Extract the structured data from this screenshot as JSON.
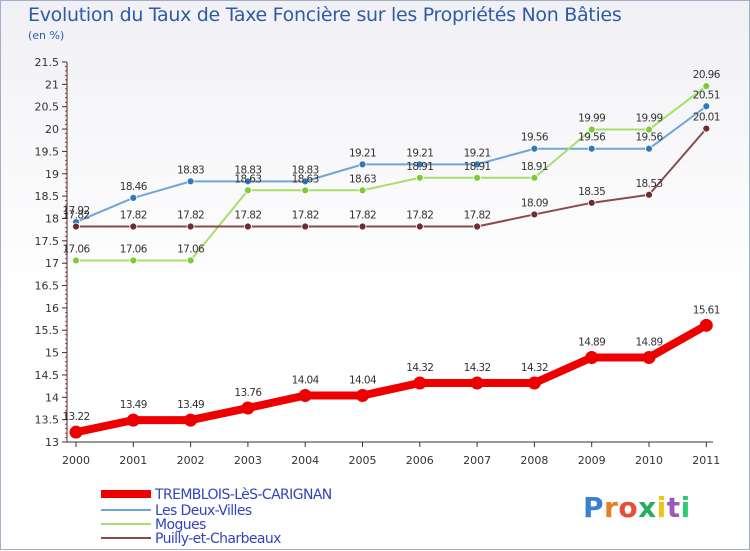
{
  "title": "Evolution du Taux de Taxe Foncière sur les Propriétés Non Bâties",
  "subtitle": "(en %)",
  "brand": "Proxiti",
  "chart_data": {
    "type": "line",
    "title": "Evolution du Taux de Taxe Foncière sur les Propriétés Non Bâties",
    "ylabel": "(en %)",
    "xlabel": "",
    "x": [
      "2000",
      "2001",
      "2002",
      "2003",
      "2004",
      "2005",
      "2006",
      "2007",
      "2008",
      "2009",
      "2010",
      "2011"
    ],
    "ylim": [
      13,
      21.5
    ],
    "yticks": [
      "13",
      "13.5",
      "14",
      "14.5",
      "15",
      "15.5",
      "16",
      "16.5",
      "17",
      "17.5",
      "18",
      "18.5",
      "19",
      "19.5",
      "20",
      "20.5",
      "21",
      "21.5"
    ],
    "grid": false,
    "legend": "bottom",
    "series": [
      {
        "name": "TREMBLOIS-LèS-CARIGNAN",
        "color": "#ee0000",
        "labelColor": "#333333",
        "values": [
          13.22,
          13.49,
          13.49,
          13.76,
          14.04,
          14.04,
          14.32,
          14.32,
          14.32,
          14.89,
          14.89,
          15.61
        ],
        "labels": [
          "13.22",
          "13.49",
          "13.49",
          "13.76",
          "14.04",
          "14.04",
          "14.32",
          "14.32",
          "14.32",
          "14.89",
          "14.89",
          "15.61"
        ]
      },
      {
        "name": "Les Deux-Villes",
        "color": "#6fa6d9",
        "dotColor": "#2f79c2",
        "labelColor": "#333333",
        "values": [
          17.92,
          18.46,
          18.83,
          18.83,
          18.83,
          19.21,
          19.21,
          19.21,
          19.56,
          19.56,
          19.56,
          20.51
        ],
        "labels": [
          "17.92",
          "18.46",
          "18.83",
          "18.83",
          "18.83",
          "19.21",
          "19.21",
          "19.21",
          "19.56",
          "19.56",
          "19.56",
          "20.51"
        ]
      },
      {
        "name": "Mogues",
        "color": "#a6df6c",
        "dotColor": "#7ccb38",
        "labelColor": "#333333",
        "values": [
          17.06,
          17.06,
          17.06,
          18.63,
          18.63,
          18.63,
          18.91,
          18.91,
          18.91,
          19.99,
          19.99,
          20.96
        ],
        "labels": [
          "17.06",
          "17.06",
          "17.06",
          "18.63",
          "18.63",
          "18.63",
          "18.91",
          "18.91",
          "18.91",
          "19.99",
          "19.99",
          "20.96"
        ]
      },
      {
        "name": "Puilly-et-Charbeaux",
        "color": "#8b4a4a",
        "dotColor": "#6e2c2c",
        "labelColor": "#333333",
        "values": [
          17.82,
          17.82,
          17.82,
          17.82,
          17.82,
          17.82,
          17.82,
          17.82,
          18.09,
          18.35,
          18.53,
          20.01
        ],
        "labels": [
          "17.82",
          "17.82",
          "17.82",
          "17.82",
          "17.82",
          "17.82",
          "17.82",
          "17.82",
          "18.09",
          "18.35",
          "18.53",
          "20.01"
        ]
      }
    ]
  }
}
